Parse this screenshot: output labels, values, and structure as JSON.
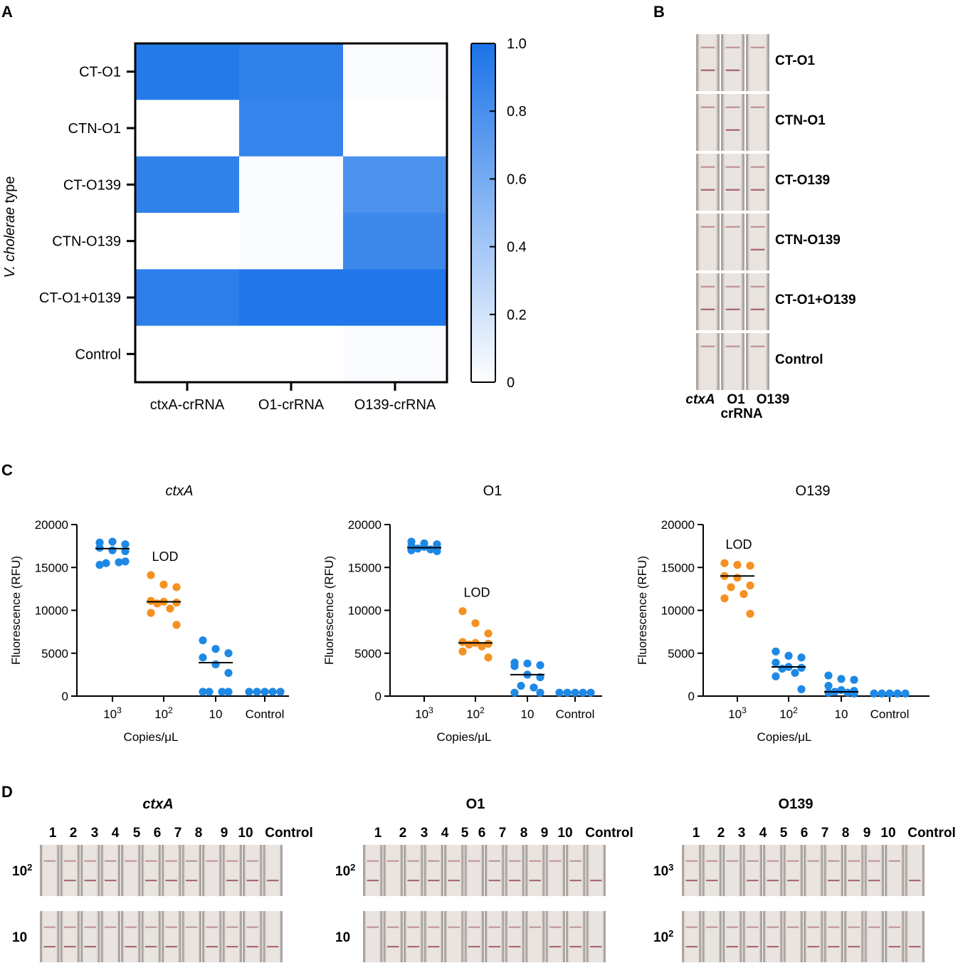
{
  "panels": {
    "a": "A",
    "b": "B",
    "c": "C",
    "d": "D"
  },
  "colors": {
    "blue": "#1e88e5",
    "orange": "#f59121",
    "heat_hi": "#1a73e8",
    "heat_lo": "#ffffff",
    "strip_bg": "#d6d0cc",
    "strip_dark": "#8f8884",
    "band": "#9a4a5c"
  },
  "heatmap": {
    "ylabel_italic": "V. cholerae",
    "ylabel_rest": " type",
    "rows": [
      "CT-O1",
      "CTN-O1",
      "CT-O139",
      "CTN-O139",
      "CT-O1+0139",
      "Control"
    ],
    "cols": [
      "ctxA-crRNA",
      "O1-crRNA",
      "O139-crRNA"
    ],
    "values": [
      [
        0.95,
        0.9,
        0.02
      ],
      [
        0.0,
        0.88,
        0.0
      ],
      [
        0.9,
        0.02,
        0.78
      ],
      [
        0.0,
        0.02,
        0.85
      ],
      [
        0.92,
        0.97,
        0.97
      ],
      [
        0.0,
        0.0,
        0.02
      ]
    ],
    "colorbar_ticks": [
      "1.0",
      "0.8",
      "0.6",
      "0.4",
      "0.2",
      "0"
    ]
  },
  "strips_b": {
    "rows": [
      "CT-O1",
      "CTN-O1",
      "CT-O139",
      "CTN-O139",
      "CT-O1+O139",
      "Control"
    ],
    "col_labels": [
      "ctxA",
      "O1",
      "O139"
    ],
    "crrna_label": "crRNA",
    "band_presence": [
      [
        [
          true,
          true
        ],
        [
          true,
          true
        ],
        [
          true,
          false
        ]
      ],
      [
        [
          true,
          false
        ],
        [
          true,
          true
        ],
        [
          true,
          false
        ]
      ],
      [
        [
          true,
          true
        ],
        [
          true,
          true
        ],
        [
          true,
          true
        ]
      ],
      [
        [
          true,
          false
        ],
        [
          true,
          false
        ],
        [
          true,
          true
        ]
      ],
      [
        [
          true,
          true
        ],
        [
          true,
          true
        ],
        [
          true,
          true
        ]
      ],
      [
        [
          true,
          false
        ],
        [
          true,
          false
        ],
        [
          true,
          false
        ]
      ]
    ]
  },
  "chart_data": [
    {
      "type": "scatter",
      "title": "ctxA",
      "title_italic": true,
      "ylabel": "Fluorescence (RFU)",
      "xlabel": "Copies/μL",
      "categories": [
        "10",
        "10",
        "10",
        "Control"
      ],
      "category_exponents": [
        "3",
        "2",
        "",
        ""
      ],
      "ylim": [
        0,
        20000
      ],
      "yticks": [
        "0",
        "5000",
        "10000",
        "15000",
        "20000"
      ],
      "lod_label": "LOD",
      "lod_index": 1,
      "point_colors": [
        "blue",
        "orange",
        "blue",
        "blue"
      ],
      "points": [
        [
          17900,
          18000,
          17700,
          17300,
          17000,
          16900,
          15500,
          15600,
          15300,
          15700
        ],
        [
          14100,
          13000,
          12700,
          11100,
          11000,
          10900,
          10800,
          10200,
          9700,
          8300
        ],
        [
          6500,
          5500,
          5000,
          4500,
          3700,
          2700,
          500,
          500,
          500,
          500
        ],
        [
          500,
          500,
          500,
          500,
          500
        ]
      ],
      "medians": [
        17200,
        11000,
        3900,
        null
      ]
    },
    {
      "type": "scatter",
      "title": "O1",
      "title_italic": false,
      "ylabel": "Fluorescence (RFU)",
      "xlabel": "Copies/μL",
      "categories": [
        "10",
        "10",
        "10",
        "Control"
      ],
      "category_exponents": [
        "3",
        "2",
        "",
        ""
      ],
      "ylim": [
        0,
        20000
      ],
      "yticks": [
        "0",
        "5000",
        "10000",
        "15000",
        "20000"
      ],
      "lod_label": "LOD",
      "lod_index": 1,
      "point_colors": [
        "blue",
        "orange",
        "blue",
        "blue"
      ],
      "points": [
        [
          18000,
          17800,
          17700,
          17500,
          17400,
          17300,
          17200,
          17100,
          17000,
          16900
        ],
        [
          9900,
          8500,
          7300,
          6300,
          6200,
          6100,
          6000,
          5800,
          5200,
          4500
        ],
        [
          3900,
          3800,
          3600,
          3500,
          2500,
          2200,
          1200,
          1000,
          400,
          400
        ],
        [
          400,
          400,
          400,
          400,
          400
        ]
      ],
      "medians": [
        17300,
        6200,
        2500,
        null
      ]
    },
    {
      "type": "scatter",
      "title": "O139",
      "title_italic": false,
      "ylabel": "Fluorescence (RFU)",
      "xlabel": "Copies/μL",
      "categories": [
        "10",
        "10",
        "10",
        "Control"
      ],
      "category_exponents": [
        "3",
        "2",
        "",
        ""
      ],
      "ylim": [
        0,
        20000
      ],
      "yticks": [
        "0",
        "5000",
        "10000",
        "15000",
        "20000"
      ],
      "lod_label": "LOD",
      "lod_index": 0,
      "point_colors": [
        "orange",
        "blue",
        "blue",
        "blue"
      ],
      "points": [
        [
          15500,
          15300,
          15200,
          14000,
          13800,
          12900,
          12700,
          11900,
          11400,
          9600
        ],
        [
          5200,
          4700,
          4500,
          3900,
          3400,
          3300,
          3200,
          2700,
          2300,
          800
        ],
        [
          2400,
          2000,
          1900,
          1200,
          700,
          600,
          500,
          400,
          400,
          300
        ],
        [
          300,
          300,
          300,
          300,
          300
        ]
      ],
      "medians": [
        14000,
        3400,
        500,
        null
      ]
    }
  ],
  "strips_d": [
    {
      "title": "ctxA",
      "title_italic": true,
      "lane_labels": [
        "1",
        "2",
        "3",
        "4",
        "5",
        "6",
        "7",
        "8",
        "9",
        "10",
        "Control"
      ],
      "row_labels": [
        {
          "base": "10",
          "exp": "2"
        },
        {
          "base": "10",
          "exp": ""
        }
      ]
    },
    {
      "title": "O1",
      "title_italic": false,
      "lane_labels": [
        "1",
        "2",
        "3",
        "4",
        "5",
        "6",
        "7",
        "8",
        "9",
        "10",
        "Control"
      ],
      "row_labels": [
        {
          "base": "10",
          "exp": "2"
        },
        {
          "base": "10",
          "exp": ""
        }
      ]
    },
    {
      "title": "O139",
      "title_italic": false,
      "lane_labels": [
        "1",
        "2",
        "3",
        "4",
        "5",
        "6",
        "7",
        "8",
        "9",
        "10",
        "Control"
      ],
      "row_labels": [
        {
          "base": "10",
          "exp": "3"
        },
        {
          "base": "10",
          "exp": "2"
        }
      ]
    }
  ]
}
